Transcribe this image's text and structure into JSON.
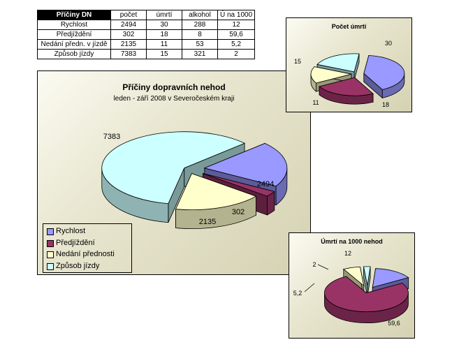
{
  "table": {
    "corner": "Příčiny DN",
    "headers": [
      "počet",
      "úmrtí",
      "alkohol",
      "Ú na 1000"
    ],
    "rows": [
      {
        "label": "Rychlost",
        "cells": [
          "2494",
          "30",
          "288",
          "12"
        ]
      },
      {
        "label": "Předjíždění",
        "cells": [
          "302",
          "18",
          "8",
          "59,6"
        ]
      },
      {
        "label": "Nedání předn. v jízdě",
        "cells": [
          "2135",
          "11",
          "53",
          "5,2"
        ]
      },
      {
        "label": "Způsob jízdy",
        "cells": [
          "7383",
          "15",
          "321",
          "2"
        ]
      }
    ]
  },
  "colors": {
    "Rychlost": "#9999ff",
    "Předjíždění": "#993366",
    "Nedání přednosti": "#ffffcc",
    "Způsob jízdy": "#ccffff"
  },
  "chart_data": [
    {
      "type": "pie",
      "title": "Příčiny dopravních nehod",
      "subtitle": "leden - září 2008 v Severočeském kraji",
      "categories": [
        "Rychlost",
        "Předjíždění",
        "Nedání přednosti",
        "Způsob jízdy"
      ],
      "values": [
        2494,
        302,
        2135,
        7383
      ],
      "data_labels": [
        "2494",
        "302",
        "2135",
        "7383"
      ],
      "exploded": true,
      "legend": "bottom-left",
      "style": "3d"
    },
    {
      "type": "pie",
      "title": "Počet úmrtí",
      "categories": [
        "Rychlost",
        "Předjíždění",
        "Nedání přednosti",
        "Způsob jízdy"
      ],
      "values": [
        30,
        18,
        11,
        15
      ],
      "data_labels": [
        "30",
        "18",
        "11",
        "15"
      ],
      "exploded": true,
      "style": "3d"
    },
    {
      "type": "pie",
      "title": "Úmrtí  na 1000 nehod",
      "categories": [
        "Rychlost",
        "Předjíždění",
        "Nedání přednosti",
        "Způsob jízdy"
      ],
      "values": [
        12,
        59.6,
        5.2,
        2
      ],
      "data_labels": [
        "12",
        "59,6",
        "5,2",
        "2"
      ],
      "exploded": true,
      "style": "3d"
    }
  ]
}
